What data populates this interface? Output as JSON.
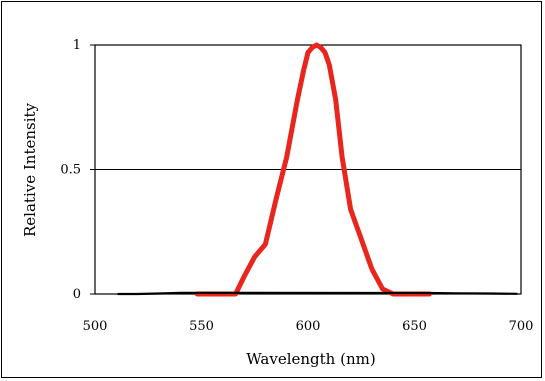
{
  "chart_data": {
    "type": "line",
    "title": "",
    "xlabel": "Wavelength (nm)",
    "ylabel": "Relative Intensity",
    "xlim": [
      500,
      700
    ],
    "ylim": [
      0,
      1
    ],
    "x_ticks": [
      "500",
      "550",
      "600",
      "650",
      "700"
    ],
    "y_ticks": [
      "0",
      "0.5",
      "1"
    ],
    "grid": "horizontal",
    "legend": "none",
    "series": [
      {
        "color": "#e8261d",
        "x": [
          548,
          558,
          566,
          570,
          575,
          580,
          585,
          590,
          595,
          598,
          600,
          602,
          604,
          606,
          608,
          610,
          613,
          616,
          620,
          625,
          630,
          635,
          640,
          650,
          657
        ],
        "y": [
          0,
          0,
          0,
          0.07,
          0.15,
          0.2,
          0.38,
          0.55,
          0.78,
          0.9,
          0.97,
          0.99,
          1.0,
          0.99,
          0.97,
          0.92,
          0.78,
          0.55,
          0.34,
          0.22,
          0.1,
          0.02,
          0,
          0,
          0
        ]
      },
      {
        "color": "#000000",
        "x": [
          511,
          520,
          530,
          540,
          548,
          657,
          670,
          685,
          698
        ],
        "y": [
          0,
          0,
          0.002,
          0.005,
          0.005,
          0.004,
          0.003,
          0.002,
          0.001
        ]
      }
    ]
  }
}
